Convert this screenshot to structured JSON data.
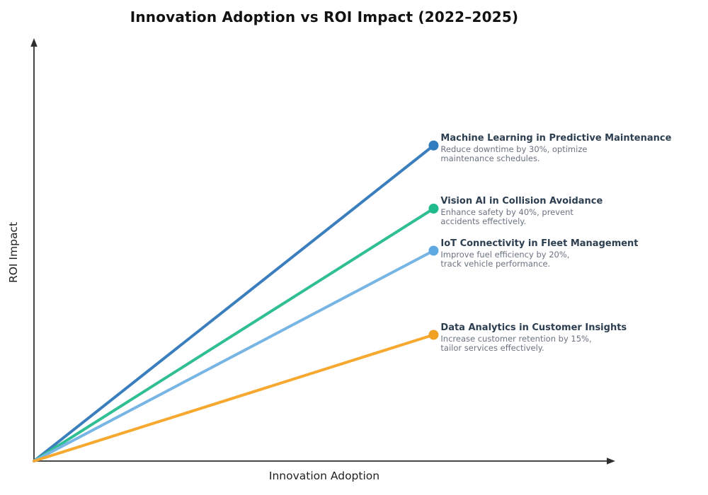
{
  "page": {
    "background": "#ffffff"
  },
  "chart_data": {
    "type": "line",
    "title": "Innovation Adoption vs ROI Impact (2022–2025)",
    "xlabel": "Innovation Adoption",
    "ylabel": "ROI Impact",
    "x_range": [
      0,
      1
    ],
    "y_range": [
      0,
      1
    ],
    "grid": false,
    "ticks": false,
    "legend": "none (inline annotations at line endpoints)",
    "axis_style": "arrow-tipped axes, no tick labels",
    "axis_color": "#2f2f2f",
    "annotation_title_color": "#2C3E50",
    "annotation_desc_color": "#6B7280",
    "series": [
      {
        "name": "Machine Learning in Predictive Maintenance",
        "description": "Reduce downtime by 30%, optimize\nmaintenance schedules.",
        "line_color": "#3B7EBE",
        "dot_color": "#2E7BBE",
        "points": [
          [
            0,
            0
          ],
          [
            0.69,
            0.75
          ]
        ]
      },
      {
        "name": "Vision AI in Collision Avoidance",
        "description": "Enhance safety by 40%, prevent\naccidents effectively.",
        "line_color": "#30BE93",
        "dot_color": "#21BA8D",
        "points": [
          [
            0,
            0
          ],
          [
            0.69,
            0.6
          ]
        ]
      },
      {
        "name": "IoT Connectivity in Fleet Management",
        "description": "Improve fuel efficiency by 20%,\ntrack vehicle performance.",
        "line_color": "#77B5E5",
        "dot_color": "#5EA9E2",
        "points": [
          [
            0,
            0
          ],
          [
            0.69,
            0.5
          ]
        ]
      },
      {
        "name": "Data Analytics in Customer Insights",
        "description": "Increase customer retention by 15%,\ntailor services effectively.",
        "line_color": "#F6A82F",
        "dot_color": "#F0A022",
        "points": [
          [
            0,
            0
          ],
          [
            0.69,
            0.3
          ]
        ]
      }
    ]
  }
}
